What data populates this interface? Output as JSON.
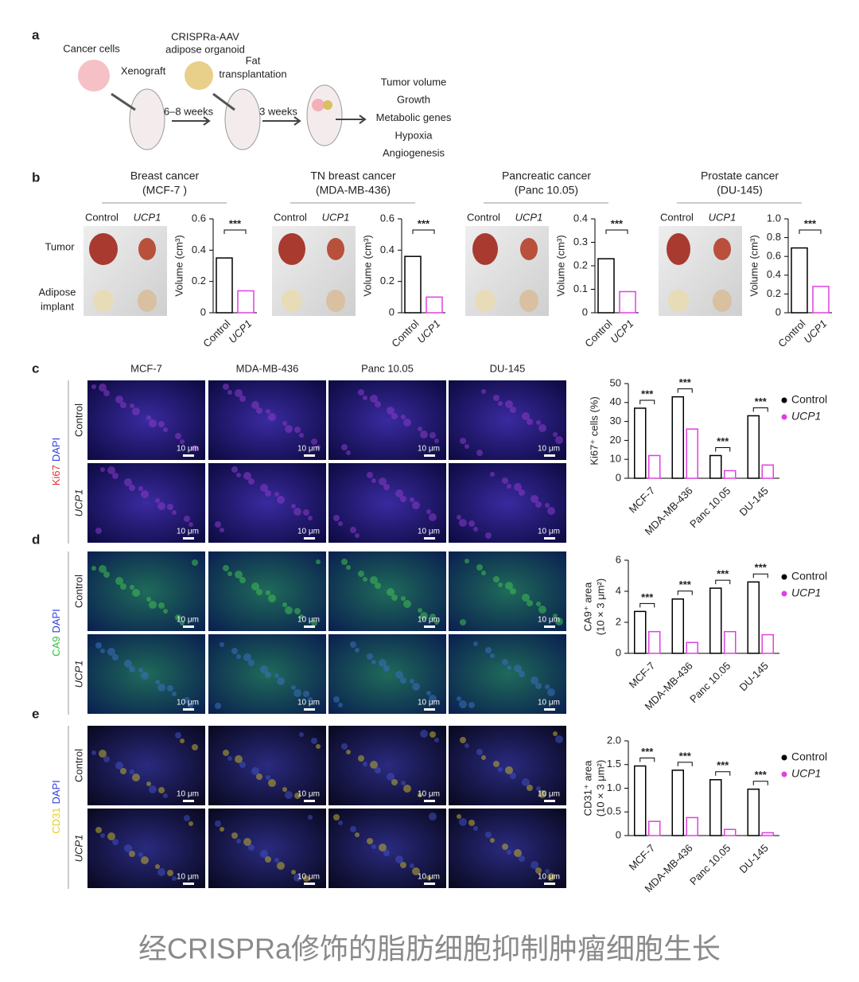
{
  "caption": "经CRISPRa修饰的脂肪细胞抑制肿瘤细胞生长",
  "panel_a": {
    "label": "a",
    "notes": [
      "Cancer cells",
      "CRISPRa-AAV",
      "adipose organoid",
      "Xenograft",
      "Fat",
      "transplantation",
      "6–8 weeks",
      "3 weeks"
    ],
    "outcomes": [
      "Tumor volume",
      "Growth",
      "Metabolic genes",
      "Hypoxia",
      "Angiogenesis"
    ]
  },
  "panel_b": {
    "label": "b",
    "row_labels": [
      "Tumor"
    ],
    "adipose_label": [
      "Adipose",
      "implant"
    ],
    "photo_headers": [
      "Control",
      "UCP1"
    ]
  },
  "micrographs": {
    "columns": [
      "MCF-7",
      "MDA-MB-436",
      "Panc 10.05",
      "DU-145"
    ],
    "rows": [
      "Control",
      "UCP1"
    ],
    "scale_bar": "10 μm",
    "panels": [
      {
        "label": "c",
        "stain": [
          "Ki67",
          "DAPI"
        ],
        "stain_colors": [
          "#e0303a",
          "#3040e0"
        ]
      },
      {
        "label": "d",
        "stain": [
          "CA9",
          "DAPI"
        ],
        "stain_colors": [
          "#30c040",
          "#3040e0"
        ]
      },
      {
        "label": "e",
        "stain": [
          "CD31",
          "DAPI"
        ],
        "stain_colors": [
          "#e0d020",
          "#3040e0"
        ]
      }
    ]
  },
  "chart_data": [
    {
      "type": "bar",
      "title": [
        "Breast cancer",
        "(MCF-7 )"
      ],
      "categories": [
        "Control",
        "UCP1"
      ],
      "values": [
        0.35,
        0.14
      ],
      "colors": [
        "#000000",
        "#e040e0"
      ],
      "ylim": [
        0,
        0.6
      ],
      "yticks": [
        0,
        0.2,
        0.4,
        0.6
      ],
      "y_label": [
        "Volume (cm³)"
      ],
      "significance": "***"
    },
    {
      "type": "bar",
      "title": [
        "TN breast cancer",
        "(MDA-MB-436)"
      ],
      "categories": [
        "Control",
        "UCP1"
      ],
      "values": [
        0.36,
        0.1
      ],
      "colors": [
        "#000000",
        "#e040e0"
      ],
      "ylim": [
        0,
        0.6
      ],
      "yticks": [
        0,
        0.2,
        0.4,
        0.6
      ],
      "y_label": [
        "Volume (cm³)"
      ],
      "significance": "***"
    },
    {
      "type": "bar",
      "title": [
        "Pancreatic cancer",
        "(Panc 10.05)"
      ],
      "categories": [
        "Control",
        "UCP1"
      ],
      "values": [
        0.23,
        0.09
      ],
      "colors": [
        "#000000",
        "#e040e0"
      ],
      "ylim": [
        0,
        0.4
      ],
      "yticks": [
        0,
        0.1,
        0.2,
        0.3,
        0.4
      ],
      "y_label": [
        "Volume (cm³)"
      ],
      "significance": "***"
    },
    {
      "type": "bar",
      "title": [
        "Prostate cancer",
        "(DU-145)"
      ],
      "categories": [
        "Control",
        "UCP1"
      ],
      "values": [
        0.69,
        0.28
      ],
      "colors": [
        "#000000",
        "#e040e0"
      ],
      "ylim": [
        0,
        1
      ],
      "yticks": [
        0,
        0.2,
        0.4,
        0.6,
        0.8,
        {
          "value": 1,
          "label": "1.0"
        }
      ],
      "y_label": [
        "Volume (cm³)"
      ],
      "significance": "***"
    },
    {
      "type": "grouped_bar",
      "categories": [
        "MCF-7",
        "MDA-MB-436",
        "Panc 10.05",
        "DU-145"
      ],
      "series": [
        {
          "name": "Control",
          "color": "#000000",
          "values": [
            37,
            43,
            12,
            33
          ]
        },
        {
          "name": "UCP1",
          "color": "#e040e0",
          "values": [
            12,
            26,
            4,
            7
          ]
        }
      ],
      "ylim": [
        0,
        50
      ],
      "yticks": [
        0,
        10,
        20,
        30,
        40,
        50
      ],
      "y_label": [
        "Ki67⁺ cells (%)"
      ],
      "significance": [
        "***",
        "***",
        "***",
        "***"
      ],
      "legend": "right"
    },
    {
      "type": "grouped_bar",
      "categories": [
        "MCF-7",
        "MDA-MB-436",
        "Panc 10.05",
        "DU-145"
      ],
      "series": [
        {
          "name": "Control",
          "color": "#000000",
          "values": [
            2.7,
            3.5,
            4.2,
            4.6
          ]
        },
        {
          "name": "UCP1",
          "color": "#e040e0",
          "values": [
            1.4,
            0.7,
            1.4,
            1.2
          ]
        }
      ],
      "ylim": [
        0,
        6
      ],
      "yticks": [
        0,
        2,
        4,
        6
      ],
      "y_label": [
        "CA9⁺ area",
        "(10 × 3 μm²)"
      ],
      "significance": [
        "***",
        "***",
        "***",
        "***"
      ],
      "legend": "right"
    },
    {
      "type": "grouped_bar",
      "categories": [
        "MCF-7",
        "MDA-MB-436",
        "Panc 10.05",
        "DU-145"
      ],
      "series": [
        {
          "name": "Control",
          "color": "#000000",
          "values": [
            1.47,
            1.38,
            1.18,
            0.98
          ]
        },
        {
          "name": "UCP1",
          "color": "#e040e0",
          "values": [
            0.3,
            0.38,
            0.13,
            0.06
          ]
        }
      ],
      "ylim": [
        0,
        2
      ],
      "yticks": [
        0,
        0.5,
        {
          "value": 1,
          "label": "1.0"
        },
        1.5,
        {
          "value": 2,
          "label": "2.0"
        }
      ],
      "y_label": [
        "CD31⁺ area",
        "(10 × 3 μm²)"
      ],
      "significance": [
        "***",
        "***",
        "***",
        "***"
      ],
      "legend": "right"
    }
  ]
}
